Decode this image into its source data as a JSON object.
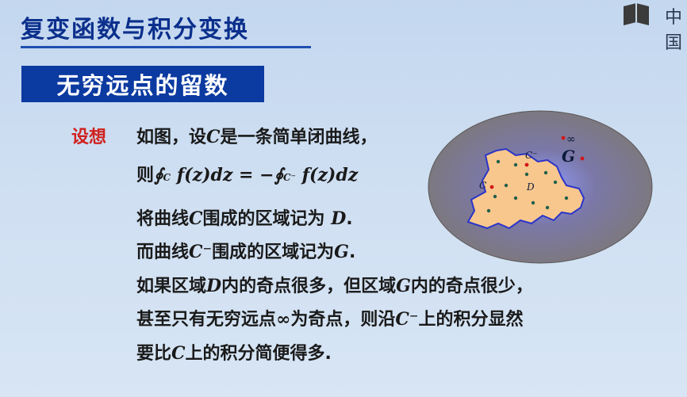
{
  "header": {
    "title": "复变函数与积分变换",
    "logo_text": "中国"
  },
  "section": {
    "label": "无穷远点的留数"
  },
  "content": {
    "suppose_label": "设想",
    "line1_a": "如图，设",
    "line1_c": "C",
    "line1_b": "是一条简单闭曲线，",
    "line2_a": "则",
    "line2_eq": "∮",
    "line2_sub1": "C",
    "line2_mid": " f(z)dz = −∮",
    "line2_sub2": "C⁻",
    "line2_end": " f(z)dz",
    "line3_a": "将曲线",
    "line3_c": "C",
    "line3_b": "围成的区域记为",
    "line3_d": "D",
    "line3_end": ".",
    "line4_a": "而曲线",
    "line4_c": "C⁻",
    "line4_b": "围成的区域记为",
    "line4_g": "G",
    "line4_end": ".",
    "line5_a": "如果区域",
    "line5_d": "D",
    "line5_b": "内的奇点很多，但区域",
    "line5_g": "G",
    "line5_c": "内的奇点很少，",
    "line6_a": "甚至只有无穷远点",
    "line6_inf": "∞",
    "line6_b": "为奇点，则沿",
    "line6_c": "C⁻",
    "line6_d": "上的积分显然",
    "line7_a": "要比",
    "line7_c": "C",
    "line7_b": "上的积分简便得多."
  },
  "figure": {
    "label_G": "G",
    "label_D": "D",
    "label_C": "C",
    "label_Cminus": "C⁻",
    "label_inf": "∞",
    "colors": {
      "outer": "#7e7a7a",
      "inner_glow": "#6f7fe0",
      "region": "#f6c48a",
      "boundary": "#2b35c8",
      "dot": "#1f5f4a",
      "pole": "#d21818"
    }
  }
}
